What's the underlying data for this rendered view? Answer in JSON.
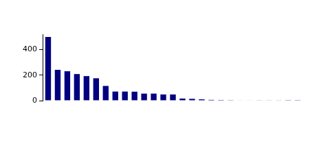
{
  "chart_data": {
    "type": "bar",
    "categories": [
      null,
      null,
      null,
      null,
      null,
      null,
      null,
      null,
      null,
      null,
      null,
      null,
      null,
      null,
      null,
      null,
      null,
      null,
      null,
      null,
      null,
      null,
      null,
      null,
      null,
      null,
      null
    ],
    "values": [
      499,
      241,
      230,
      208,
      192,
      175,
      115,
      71,
      71,
      70,
      55,
      55,
      48,
      48,
      16,
      14,
      10,
      6,
      5,
      4,
      3,
      3,
      2,
      2,
      2,
      1,
      1
    ],
    "color": "#000080",
    "ylim": [
      0,
      520
    ],
    "yticks": [
      0,
      200,
      400
    ],
    "grid": false,
    "tick_labels": "y"
  }
}
